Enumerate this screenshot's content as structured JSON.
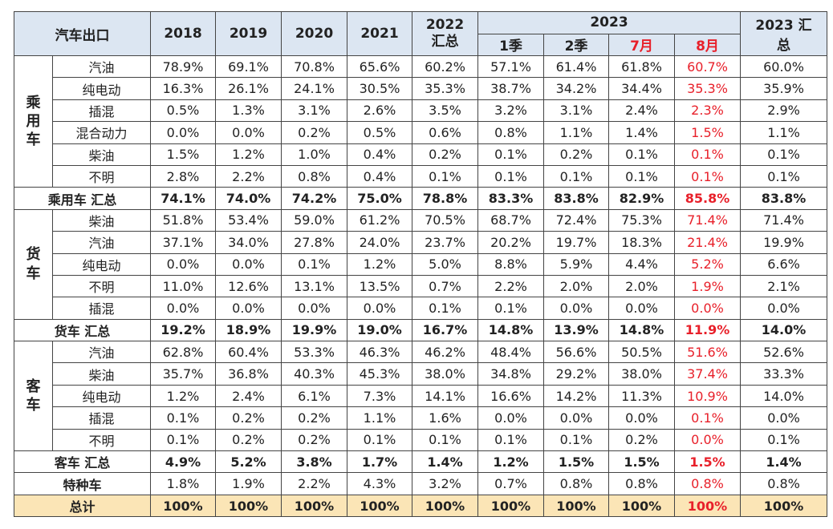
{
  "table": {
    "corner": "汽车出口",
    "years": [
      "2018",
      "2019",
      "2020",
      "2021"
    ],
    "y2022": "2022\n汇总",
    "y2023": "2023",
    "periods": [
      "1季",
      "2季",
      "7月",
      "8月"
    ],
    "y2023_total": "2023 汇总",
    "red_columns": [
      2,
      3
    ],
    "groups": [
      {
        "label": "乘用车",
        "rows": [
          {
            "name": "汽油",
            "values": [
              "78.9%",
              "69.1%",
              "70.8%",
              "65.6%",
              "60.2%",
              "57.1%",
              "61.4%",
              "61.8%",
              "60.7%",
              "60.0%"
            ]
          },
          {
            "name": "纯电动",
            "values": [
              "16.3%",
              "26.1%",
              "24.1%",
              "30.5%",
              "35.3%",
              "38.7%",
              "34.2%",
              "34.4%",
              "35.3%",
              "35.9%"
            ]
          },
          {
            "name": "插混",
            "values": [
              "0.5%",
              "1.3%",
              "3.1%",
              "2.6%",
              "3.5%",
              "3.2%",
              "3.1%",
              "2.4%",
              "2.3%",
              "2.9%"
            ]
          },
          {
            "name": "混合动力",
            "values": [
              "0.0%",
              "0.0%",
              "0.2%",
              "0.5%",
              "0.6%",
              "0.8%",
              "1.1%",
              "1.4%",
              "1.5%",
              "1.1%"
            ]
          },
          {
            "name": "柴油",
            "values": [
              "1.5%",
              "1.2%",
              "1.0%",
              "0.4%",
              "0.2%",
              "0.1%",
              "0.2%",
              "0.1%",
              "0.1%",
              "0.1%"
            ]
          },
          {
            "name": "不明",
            "values": [
              "2.8%",
              "2.2%",
              "0.8%",
              "0.4%",
              "0.1%",
              "0.1%",
              "0.1%",
              "0.1%",
              "0.1%",
              "0.1%"
            ]
          }
        ],
        "total": {
          "label": "乘用车 汇总",
          "values": [
            "74.1%",
            "74.0%",
            "74.2%",
            "75.0%",
            "78.8%",
            "83.3%",
            "83.8%",
            "82.9%",
            "85.8%",
            "83.8%"
          ]
        }
      },
      {
        "label": "货车",
        "rows": [
          {
            "name": "柴油",
            "values": [
              "51.8%",
              "53.4%",
              "59.0%",
              "61.2%",
              "70.5%",
              "68.7%",
              "72.4%",
              "75.3%",
              "71.4%",
              "71.4%"
            ]
          },
          {
            "name": "汽油",
            "values": [
              "37.1%",
              "34.0%",
              "27.8%",
              "24.0%",
              "23.7%",
              "20.2%",
              "19.7%",
              "18.3%",
              "21.4%",
              "19.9%"
            ]
          },
          {
            "name": "纯电动",
            "values": [
              "0.0%",
              "0.0%",
              "0.1%",
              "1.2%",
              "5.0%",
              "8.8%",
              "5.9%",
              "4.4%",
              "5.2%",
              "6.6%"
            ]
          },
          {
            "name": "不明",
            "values": [
              "11.0%",
              "12.6%",
              "13.1%",
              "13.5%",
              "0.7%",
              "2.2%",
              "2.0%",
              "2.0%",
              "1.9%",
              "2.1%"
            ]
          },
          {
            "name": "插混",
            "values": [
              "0.0%",
              "0.0%",
              "0.0%",
              "0.0%",
              "0.1%",
              "0.1%",
              "0.0%",
              "0.0%",
              "0.0%",
              "0.0%"
            ]
          }
        ],
        "total": {
          "label": "货车 汇总",
          "values": [
            "19.2%",
            "18.9%",
            "19.9%",
            "19.0%",
            "16.7%",
            "14.8%",
            "13.9%",
            "14.8%",
            "11.9%",
            "14.0%"
          ]
        }
      },
      {
        "label": "客车",
        "rows": [
          {
            "name": "汽油",
            "values": [
              "62.8%",
              "60.4%",
              "53.3%",
              "46.3%",
              "46.2%",
              "48.4%",
              "56.6%",
              "50.5%",
              "51.6%",
              "52.6%"
            ]
          },
          {
            "name": "柴油",
            "values": [
              "35.7%",
              "36.8%",
              "40.3%",
              "45.3%",
              "38.0%",
              "34.8%",
              "29.2%",
              "38.0%",
              "37.4%",
              "33.3%"
            ]
          },
          {
            "name": "纯电动",
            "values": [
              "1.2%",
              "2.4%",
              "6.1%",
              "7.3%",
              "14.1%",
              "16.6%",
              "14.2%",
              "11.3%",
              "10.9%",
              "14.0%"
            ]
          },
          {
            "name": "插混",
            "values": [
              "0.1%",
              "0.2%",
              "0.2%",
              "1.1%",
              "1.6%",
              "0.0%",
              "0.0%",
              "0.0%",
              "0.1%",
              "0.0%"
            ]
          },
          {
            "name": "不明",
            "values": [
              "0.1%",
              "0.2%",
              "0.2%",
              "0.1%",
              "0.1%",
              "0.1%",
              "0.1%",
              "0.2%",
              "0.0%",
              "0.1%"
            ]
          }
        ],
        "total": {
          "label": "客车 汇总",
          "values": [
            "4.9%",
            "5.2%",
            "3.8%",
            "1.7%",
            "1.4%",
            "1.2%",
            "1.5%",
            "1.5%",
            "1.5%",
            "1.4%"
          ]
        }
      }
    ],
    "special": {
      "label": "特种车",
      "values": [
        "1.8%",
        "1.9%",
        "2.2%",
        "4.3%",
        "3.2%",
        "0.7%",
        "0.8%",
        "0.8%",
        "0.8%",
        "0.8%"
      ]
    },
    "grand_total": {
      "label": "总计",
      "values": [
        "100%",
        "100%",
        "100%",
        "100%",
        "100%",
        "100%",
        "100%",
        "100%",
        "100%",
        "100%"
      ]
    }
  }
}
